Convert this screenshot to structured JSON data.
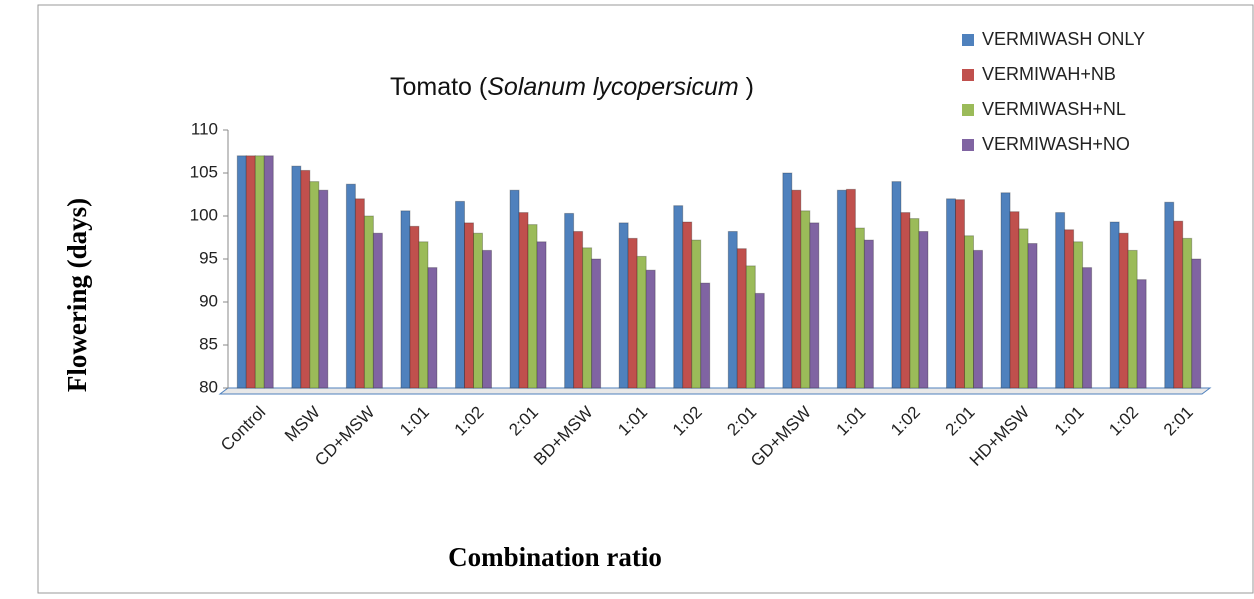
{
  "chart_data": {
    "type": "bar",
    "title": [
      "Tomato (",
      "Solanum lycopersicum",
      " )"
    ],
    "ylabel": "Flowering (days)",
    "xlabel": "Combination ratio",
    "categories": [
      "Control",
      "MSW",
      "CD+MSW",
      "1:01",
      "1:02",
      "2:01",
      "BD+MSW",
      "1:01",
      "1:02",
      "2:01",
      "GD+MSW",
      "1:01",
      "1:02",
      "2:01",
      "HD+MSW",
      "1:01",
      "1:02",
      "2:01"
    ],
    "series": [
      {
        "name": "VERMIWASH ONLY",
        "color": "#4f81bd",
        "values": [
          107,
          105.8,
          103.7,
          100.6,
          101.7,
          103,
          100.3,
          99.2,
          101.2,
          98.2,
          105,
          103,
          104,
          102,
          102.7,
          100.4,
          99.3,
          101.6
        ]
      },
      {
        "name": "VERMIWAH+NB",
        "color": "#c0504d",
        "values": [
          107,
          105.3,
          102,
          98.8,
          99.2,
          100.4,
          98.2,
          97.4,
          99.3,
          96.2,
          103,
          103.1,
          100.4,
          101.9,
          100.5,
          98.4,
          98,
          99.4
        ]
      },
      {
        "name": "VERMIWASH+NL",
        "color": "#9bbb59",
        "values": [
          107,
          104,
          100,
          97,
          98,
          99,
          96.3,
          95.3,
          97.2,
          94.2,
          100.6,
          98.6,
          99.7,
          97.7,
          98.5,
          97,
          96,
          97.4
        ]
      },
      {
        "name": "VERMIWASH+NO",
        "color": "#8064a2",
        "values": [
          107,
          103,
          98,
          94,
          96,
          97,
          95,
          93.7,
          92.2,
          91,
          99.2,
          97.2,
          98.2,
          96,
          96.8,
          94,
          92.6,
          95
        ]
      }
    ],
    "ylim": [
      80,
      110
    ],
    "yticks": [
      80,
      85,
      90,
      95,
      100,
      105,
      110
    ],
    "legend": "top-right"
  }
}
